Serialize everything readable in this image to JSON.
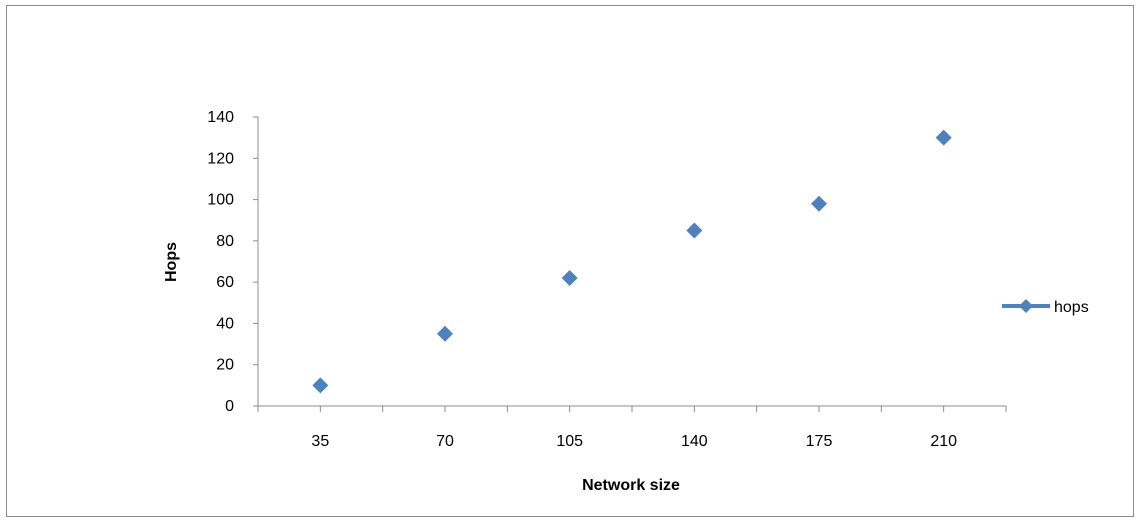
{
  "chart_data": {
    "type": "scatter",
    "categories": [
      "35",
      "70",
      "105",
      "140",
      "175",
      "210"
    ],
    "series": [
      {
        "name": "hops",
        "values": [
          10,
          35,
          62,
          85,
          98,
          130
        ],
        "color": "#4f81bd",
        "marker": "diamond"
      }
    ],
    "xlabel": "Network size",
    "ylabel": "Hops",
    "ylim": [
      0,
      140
    ],
    "yticks": [
      "0",
      "20",
      "40",
      "60",
      "80",
      "100",
      "120",
      "140"
    ],
    "grid": false,
    "legend_position": "right"
  }
}
